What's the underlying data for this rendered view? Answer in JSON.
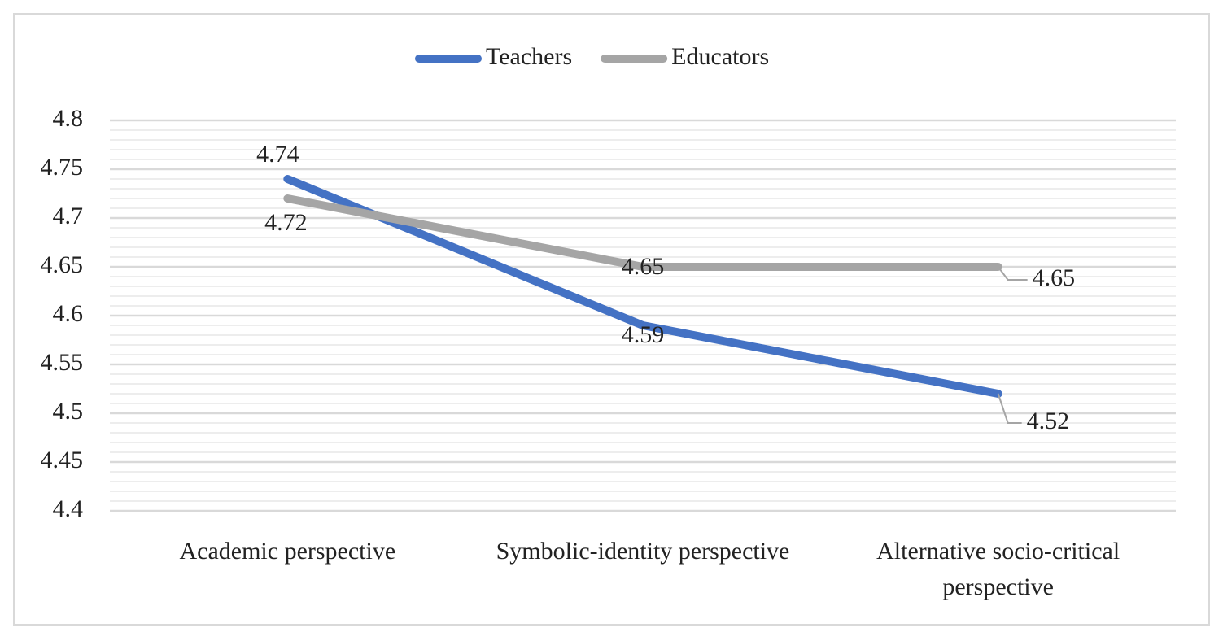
{
  "chart_data": {
    "type": "line",
    "categories": [
      "Academic perspective",
      "Symbolic-identity perspective",
      "Alternative socio-critical perspective"
    ],
    "series": [
      {
        "name": "Teachers",
        "color": "#4472c4",
        "values": [
          4.74,
          4.59,
          4.52
        ]
      },
      {
        "name": "Educators",
        "color": "#a5a5a5",
        "values": [
          4.72,
          4.65,
          4.65
        ]
      }
    ],
    "ylim": [
      4.4,
      4.8
    ],
    "yticks": [
      4.4,
      4.45,
      4.5,
      4.55,
      4.6,
      4.65,
      4.7,
      4.75,
      4.8
    ],
    "grid": true,
    "minor_grid": true,
    "legend": "top"
  }
}
